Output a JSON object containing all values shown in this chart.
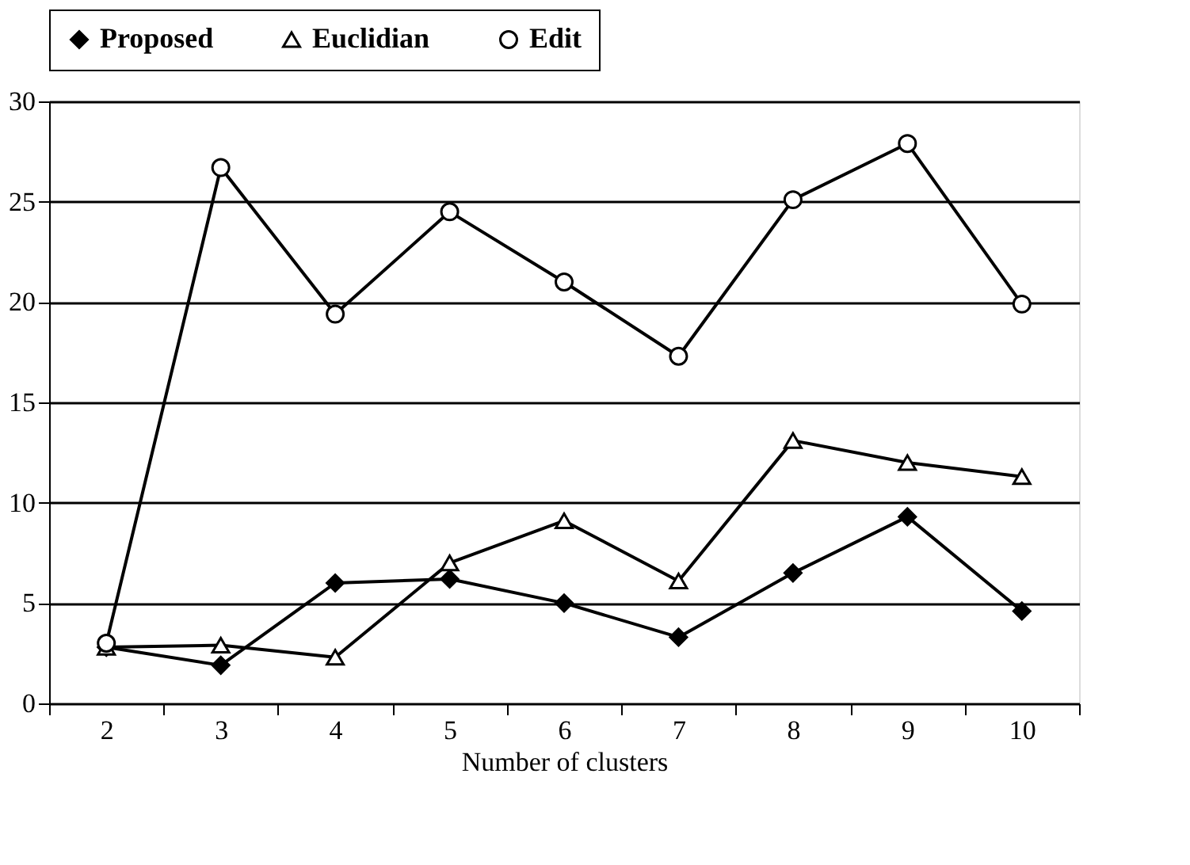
{
  "chart_data": {
    "type": "line",
    "xlabel": "Number of clusters",
    "categories": [
      "2",
      "3",
      "4",
      "5",
      "6",
      "7",
      "8",
      "9",
      "10"
    ],
    "series": [
      {
        "name": "Proposed",
        "color": "#000000",
        "marker": "diamond",
        "values": [
          2.8,
          1.9,
          6.0,
          6.2,
          5.0,
          3.3,
          6.5,
          9.3,
          4.6
        ]
      },
      {
        "name": "Euclidian",
        "color": "#000000",
        "marker": "triangle",
        "values": [
          2.8,
          2.9,
          2.3,
          7.0,
          9.1,
          6.1,
          13.1,
          12.0,
          11.3
        ]
      },
      {
        "name": "Edit",
        "color": "#000000",
        "marker": "circle",
        "values": [
          3.0,
          26.7,
          19.4,
          24.5,
          21.0,
          17.3,
          25.1,
          27.9,
          19.9
        ]
      }
    ],
    "ylim": [
      0,
      30
    ],
    "yticks": [
      0,
      5,
      10,
      15,
      20,
      25,
      30
    ],
    "grid": "y",
    "legend": "top",
    "line_style": "solid"
  }
}
